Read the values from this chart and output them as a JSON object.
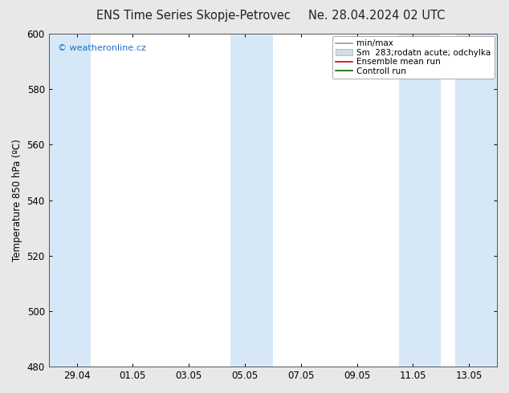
{
  "title_left": "ENS Time Series Skopje-Petrovec",
  "title_right": "Ne. 28.04.2024 02 UTC",
  "ylabel": "Temperature 850 hPa (ºC)",
  "ylim": [
    480,
    600
  ],
  "yticks": [
    480,
    500,
    520,
    540,
    560,
    580,
    600
  ],
  "xtick_labels": [
    "29.04",
    "01.05",
    "03.05",
    "05.05",
    "07.05",
    "09.05",
    "11.05",
    "13.05"
  ],
  "band_color": "#d6e8f7",
  "background_color": "#e8e8e8",
  "plot_bg_color": "#ffffff",
  "watermark": "© weatheronline.cz",
  "watermark_color": "#1a6ecc",
  "legend_labels": [
    "min/max",
    "Sm  283;rodatn acute; odchylka",
    "Ensemble mean run",
    "Controll run"
  ],
  "legend_colors": [
    "#999999",
    "#bbccdd",
    "#cc0000",
    "#006600"
  ],
  "title_fontsize": 10.5,
  "tick_fontsize": 8.5,
  "ylabel_fontsize": 8.5,
  "watermark_fontsize": 8,
  "legend_fontsize": 7.5
}
